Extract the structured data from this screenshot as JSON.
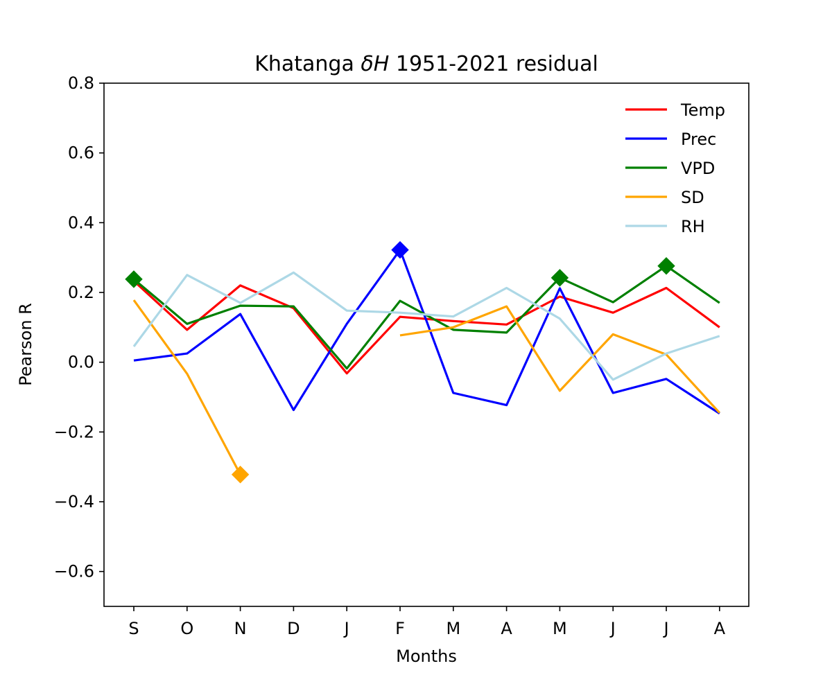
{
  "chart_data": {
    "type": "line",
    "title": "Khatanga δH 1951-2021 residual",
    "title_parts": {
      "prefix": "Khatanga ",
      "italic_delta": "δ",
      "italic_h": "H",
      "suffix": " 1951-2021 residual"
    },
    "xlabel": "Months",
    "ylabel": "Pearson R",
    "categories": [
      "S",
      "O",
      "N",
      "D",
      "J",
      "F",
      "M",
      "A",
      "M",
      "J",
      "J",
      "A"
    ],
    "ylim": [
      -0.7,
      0.8
    ],
    "yticks": [
      -0.6,
      -0.4,
      -0.2,
      0.0,
      0.2,
      0.4,
      0.6,
      0.8
    ],
    "ytick_labels": [
      "−0.6",
      "−0.4",
      "−0.2",
      "0.0",
      "0.2",
      "0.4",
      "0.6",
      "0.8"
    ],
    "grid": false,
    "legend_position": "top-right",
    "series": [
      {
        "name": "Temp",
        "color": "#ff0000",
        "values": [
          0.233,
          0.093,
          0.22,
          0.155,
          -0.032,
          0.13,
          0.118,
          0.108,
          0.188,
          0.142,
          0.213,
          0.1
        ],
        "significant": []
      },
      {
        "name": "Prec",
        "color": "#0000ff",
        "values": [
          0.005,
          0.025,
          0.138,
          -0.137,
          0.11,
          0.322,
          -0.088,
          -0.123,
          0.212,
          -0.088,
          -0.048,
          -0.147
        ],
        "significant": [
          5
        ]
      },
      {
        "name": "VPD",
        "color": "#008000",
        "values": [
          0.238,
          0.11,
          0.162,
          0.16,
          -0.018,
          0.176,
          0.093,
          0.085,
          0.242,
          0.172,
          0.276,
          0.17
        ],
        "significant": [
          0,
          8,
          10
        ]
      },
      {
        "name": "SD",
        "color": "#ffa500",
        "segments": [
          {
            "start": 0,
            "values": [
              0.178,
              -0.033,
              -0.322
            ]
          },
          {
            "start": 5,
            "values": [
              0.077,
              0.1,
              0.16,
              -0.082,
              0.08,
              0.022,
              -0.145
            ]
          }
        ],
        "significant": [
          2
        ]
      },
      {
        "name": "RH",
        "color": "#add8e6",
        "values": [
          0.045,
          0.25,
          0.17,
          0.257,
          0.148,
          0.142,
          0.131,
          0.213,
          0.125,
          -0.05,
          0.025,
          0.075
        ],
        "significant": []
      }
    ]
  }
}
